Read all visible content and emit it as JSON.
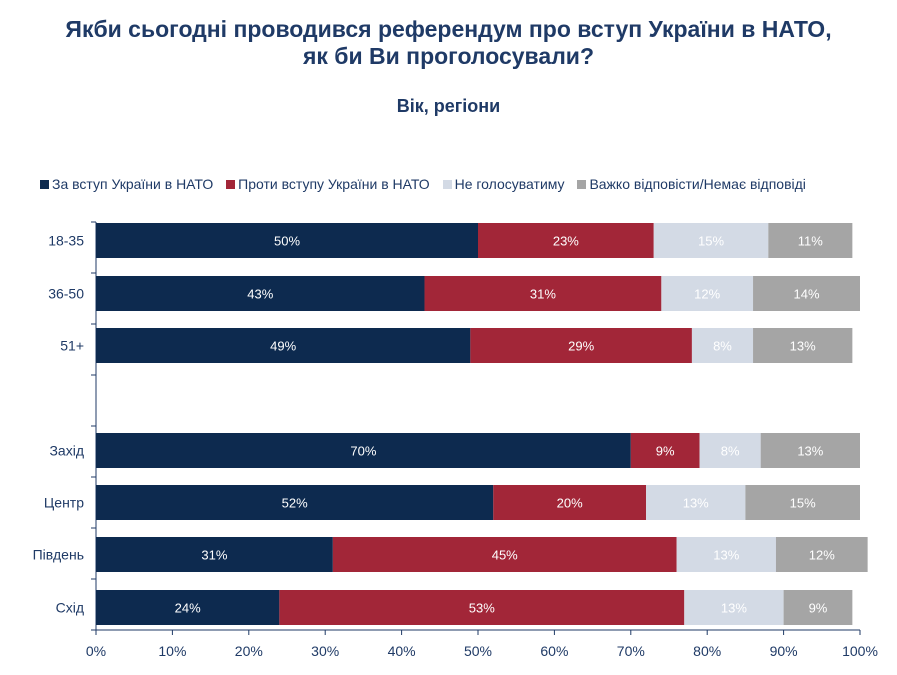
{
  "header": {
    "title_line1": "Якби сьогодні проводився референдум про вступ України в НАТО,",
    "title_line2": "як би Ви проголосували?",
    "subtitle": "Вік, регіони"
  },
  "colors": {
    "title": "#1f3a66",
    "axis": "#1f3a66",
    "grid": "#9aa5b8"
  },
  "chart_data": {
    "type": "bar",
    "orientation": "horizontal",
    "stacked": true,
    "title": "Якби сьогодні проводився референдум про вступ України в НАТО, як би Ви проголосували?",
    "subtitle": "Вік, регіони",
    "legend_position": "top",
    "xlim": [
      0,
      100
    ],
    "x_ticks": [
      "0%",
      "10%",
      "20%",
      "30%",
      "40%",
      "50%",
      "60%",
      "70%",
      "80%",
      "90%",
      "100%"
    ],
    "categories": [
      "18-35",
      "36-50",
      "51+",
      "",
      "Захід",
      "Центр",
      "Південь",
      "Схід"
    ],
    "series": [
      {
        "name": "За вступ України в НАТО",
        "color": "#0d2a4f",
        "text_color": "#ffffff",
        "values": [
          50,
          43,
          49,
          null,
          70,
          52,
          31,
          24
        ],
        "labels": [
          "50%",
          "43%",
          "49%",
          "",
          "70%",
          "52%",
          "31%",
          "24%"
        ]
      },
      {
        "name": "Проти вступу України в НАТО",
        "color": "#a22638",
        "text_color": "#ffffff",
        "values": [
          23,
          31,
          29,
          null,
          9,
          20,
          45,
          53
        ],
        "labels": [
          "23%",
          "31%",
          "29%",
          "",
          "9%",
          "20%",
          "45%",
          "53%"
        ]
      },
      {
        "name": "Не голосуватиму",
        "color": "#d3dae5",
        "text_color": "#ffffff",
        "values": [
          15,
          12,
          8,
          null,
          8,
          13,
          13,
          13
        ],
        "labels": [
          "15%",
          "12%",
          "8%",
          "",
          "8%",
          "13%",
          "13%",
          "13%"
        ]
      },
      {
        "name": "Важко відповісти/Немає відповіді",
        "color": "#a5a5a5",
        "text_color": "#ffffff",
        "values": [
          11,
          14,
          13,
          null,
          13,
          15,
          12,
          9
        ],
        "labels": [
          "11%",
          "14%",
          "13%",
          "",
          "13%",
          "15%",
          "12%",
          "9%"
        ]
      }
    ]
  }
}
